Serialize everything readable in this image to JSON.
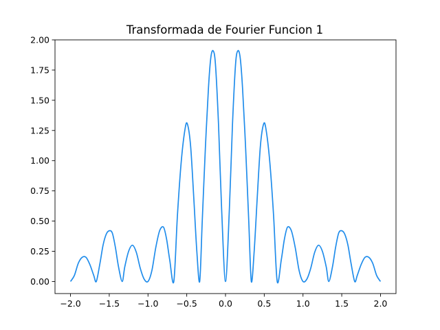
{
  "chart_data": {
    "type": "line",
    "title": "Transformada de Fourier Funcion 1",
    "xlabel": "",
    "ylabel": "",
    "xlim": [
      -2.2,
      2.2
    ],
    "ylim": [
      -0.1,
      2.0
    ],
    "xticks": [
      -2.0,
      -1.5,
      -1.0,
      -0.5,
      0.0,
      0.5,
      1.0,
      1.5,
      2.0
    ],
    "xtick_labels": [
      "−2.0",
      "−1.5",
      "−1.0",
      "−0.5",
      "0.0",
      "0.5",
      "1.0",
      "1.5",
      "2.0"
    ],
    "yticks": [
      0.0,
      0.25,
      0.5,
      0.75,
      1.0,
      1.25,
      1.5,
      1.75,
      2.0
    ],
    "ytick_labels": [
      "0.00",
      "0.25",
      "0.50",
      "0.75",
      "1.00",
      "1.25",
      "1.50",
      "1.75",
      "2.00"
    ],
    "grid": false,
    "line_color": "#1f8ceb",
    "series": [
      {
        "x": [
          -2.0,
          -1.95,
          -1.9,
          -1.85,
          -1.8,
          -1.75,
          -1.7,
          -1.667,
          -1.62,
          -1.58,
          -1.54,
          -1.5,
          -1.46,
          -1.42,
          -1.38,
          -1.333,
          -1.3,
          -1.25,
          -1.2,
          -1.15,
          -1.1,
          -1.05,
          -1.0,
          -0.95,
          -0.9,
          -0.85,
          -0.8,
          -0.76,
          -0.72,
          -0.667,
          -0.62,
          -0.57,
          -0.52,
          -0.49,
          -0.45,
          -0.41,
          -0.37,
          -0.333,
          -0.3,
          -0.26,
          -0.22,
          -0.19,
          -0.16,
          -0.13,
          -0.09,
          -0.05,
          0.0,
          0.05,
          0.09,
          0.13,
          0.16,
          0.19,
          0.22,
          0.26,
          0.3,
          0.333,
          0.37,
          0.41,
          0.45,
          0.49,
          0.52,
          0.57,
          0.62,
          0.667,
          0.72,
          0.76,
          0.8,
          0.85,
          0.9,
          0.95,
          1.0,
          1.05,
          1.1,
          1.15,
          1.2,
          1.25,
          1.3,
          1.333,
          1.38,
          1.42,
          1.46,
          1.5,
          1.54,
          1.58,
          1.62,
          1.667,
          1.7,
          1.75,
          1.8,
          1.85,
          1.9,
          1.95,
          2.0
        ],
        "y": [
          0.0,
          0.05,
          0.15,
          0.2,
          0.2,
          0.14,
          0.05,
          0.0,
          0.15,
          0.3,
          0.39,
          0.42,
          0.4,
          0.28,
          0.12,
          0.0,
          0.12,
          0.25,
          0.3,
          0.24,
          0.11,
          0.02,
          0.0,
          0.09,
          0.28,
          0.42,
          0.45,
          0.35,
          0.18,
          0.0,
          0.55,
          1.0,
          1.27,
          1.3,
          1.12,
          0.7,
          0.25,
          0.0,
          0.5,
          1.1,
          1.6,
          1.85,
          1.91,
          1.8,
          1.3,
          0.6,
          0.0,
          0.6,
          1.3,
          1.8,
          1.91,
          1.85,
          1.6,
          1.1,
          0.5,
          0.0,
          0.25,
          0.7,
          1.12,
          1.3,
          1.27,
          1.0,
          0.55,
          0.0,
          0.18,
          0.35,
          0.45,
          0.42,
          0.28,
          0.09,
          0.0,
          0.02,
          0.11,
          0.24,
          0.3,
          0.25,
          0.12,
          0.0,
          0.12,
          0.28,
          0.4,
          0.42,
          0.39,
          0.3,
          0.15,
          0.0,
          0.05,
          0.14,
          0.2,
          0.2,
          0.15,
          0.05,
          0.0
        ]
      }
    ]
  }
}
